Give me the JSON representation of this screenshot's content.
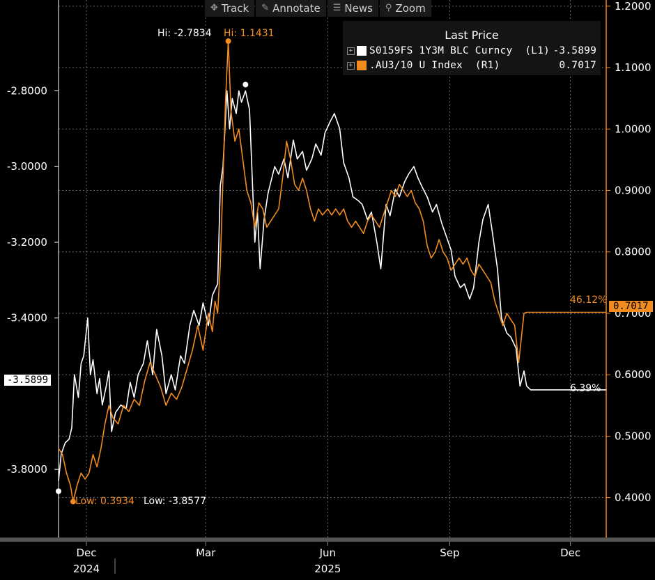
{
  "toolbar": {
    "items": [
      {
        "label": "Track",
        "icon": "crosshair-icon",
        "glyph": "✥"
      },
      {
        "label": "Annotate",
        "icon": "pencil-icon",
        "glyph": "✎"
      },
      {
        "label": "News",
        "icon": "news-icon",
        "glyph": "☰"
      },
      {
        "label": "Zoom",
        "icon": "zoom-icon",
        "glyph": "⚲"
      }
    ]
  },
  "legend": {
    "title": "Last Price",
    "rows": [
      {
        "name": "S0159FS 1Y3M BLC Curncy  (L1)",
        "value": "-3.5899",
        "color": "#ffffff"
      },
      {
        "name": ".AU3/10 U Index  (R1)",
        "value": "0.7017",
        "color": "#f28c1e"
      }
    ]
  },
  "annotations": {
    "hi_white": "Hi: -2.7834",
    "hi_orange": "Hi: 1.1431",
    "low_orange": "Low: 0.3934",
    "low_white": "Low: -3.8577",
    "pct_orange": "46.12%",
    "pct_white": "6.39%",
    "last_white_tag": "-3.5899",
    "last_orange_tag": "0.7017"
  },
  "chart_data": {
    "type": "line",
    "colors": {
      "white_series": "#ffffff",
      "orange_series": "#f28c1e",
      "right_axis": "#f28c1e",
      "left_axis": "#ffffff"
    },
    "left_axis": {
      "ylim": [
        -3.98,
        -2.56
      ],
      "ticks": [
        "-2.8000",
        "-3.0000",
        "-3.2000",
        "-3.4000",
        "-3.8000"
      ],
      "tick_values": [
        -2.8,
        -3.0,
        -3.2,
        -3.4,
        -3.8
      ]
    },
    "right_axis": {
      "ylim": [
        0.335,
        1.21
      ],
      "ticks": [
        "1.2000",
        "1.1000",
        "1.0000",
        "0.9000",
        "0.8000",
        "0.7000",
        "0.6000",
        "0.5000",
        "0.4000"
      ],
      "tick_values": [
        1.2,
        1.1,
        1.0,
        0.9,
        0.8,
        0.7,
        0.6,
        0.5,
        0.4
      ]
    },
    "x_axis": {
      "xlim": [
        "2024-11-10",
        "2025-12-28"
      ],
      "ticks": [
        {
          "label": "Dec",
          "date": "2024-12-01"
        },
        {
          "label": "Mar",
          "date": "2025-03-01"
        },
        {
          "label": "Jun",
          "date": "2025-06-01"
        },
        {
          "label": "Sep",
          "date": "2025-09-01"
        },
        {
          "label": "Dec",
          "date": "2025-12-01"
        }
      ],
      "years": [
        {
          "label": "2024",
          "date": "2024-12-01"
        },
        {
          "label": "2025",
          "date": "2025-06-01"
        }
      ]
    },
    "grid": true,
    "series": [
      {
        "name": "S0159FS 1Y3M BLC Curncy",
        "axis": "left",
        "color": "#ffffff",
        "points": [
          [
            "2024-11-10",
            -3.83
          ],
          [
            "2024-11-12",
            -3.76
          ],
          [
            "2024-11-15",
            -3.73
          ],
          [
            "2024-11-18",
            -3.72
          ],
          [
            "2024-11-20",
            -3.69
          ],
          [
            "2024-11-22",
            -3.55
          ],
          [
            "2024-11-25",
            -3.61
          ],
          [
            "2024-11-27",
            -3.52
          ],
          [
            "2024-11-29",
            -3.5
          ],
          [
            "2024-12-02",
            -3.4
          ],
          [
            "2024-12-04",
            -3.55
          ],
          [
            "2024-12-06",
            -3.51
          ],
          [
            "2024-12-09",
            -3.6
          ],
          [
            "2024-12-11",
            -3.56
          ],
          [
            "2024-12-13",
            -3.63
          ],
          [
            "2024-12-16",
            -3.58
          ],
          [
            "2024-12-18",
            -3.54
          ],
          [
            "2024-12-20",
            -3.7
          ],
          [
            "2024-12-23",
            -3.65
          ],
          [
            "2024-12-27",
            -3.63
          ],
          [
            "2024-12-31",
            -3.64
          ],
          [
            "2025-01-03",
            -3.57
          ],
          [
            "2025-01-06",
            -3.61
          ],
          [
            "2025-01-09",
            -3.55
          ],
          [
            "2025-01-13",
            -3.52
          ],
          [
            "2025-01-16",
            -3.46
          ],
          [
            "2025-01-20",
            -3.55
          ],
          [
            "2025-01-23",
            -3.43
          ],
          [
            "2025-01-27",
            -3.5
          ],
          [
            "2025-01-30",
            -3.6
          ],
          [
            "2025-02-03",
            -3.55
          ],
          [
            "2025-02-06",
            -3.59
          ],
          [
            "2025-02-10",
            -3.5
          ],
          [
            "2025-02-13",
            -3.52
          ],
          [
            "2025-02-17",
            -3.42
          ],
          [
            "2025-02-20",
            -3.38
          ],
          [
            "2025-02-24",
            -3.42
          ],
          [
            "2025-02-27",
            -3.36
          ],
          [
            "2025-03-03",
            -3.42
          ],
          [
            "2025-03-06",
            -3.34
          ],
          [
            "2025-03-10",
            -3.31
          ],
          [
            "2025-03-12",
            -3.05
          ],
          [
            "2025-03-14",
            -3.0
          ],
          [
            "2025-03-17",
            -2.8
          ],
          [
            "2025-03-19",
            -2.9
          ],
          [
            "2025-03-21",
            -2.82
          ],
          [
            "2025-03-24",
            -2.86
          ],
          [
            "2025-03-26",
            -2.8
          ],
          [
            "2025-03-28",
            -2.83
          ],
          [
            "2025-03-31",
            -2.8
          ],
          [
            "2025-04-03",
            -2.85
          ],
          [
            "2025-04-07",
            -3.2
          ],
          [
            "2025-04-09",
            -3.12
          ],
          [
            "2025-04-11",
            -3.27
          ],
          [
            "2025-04-14",
            -3.14
          ],
          [
            "2025-04-17",
            -3.07
          ],
          [
            "2025-04-22",
            -3.0
          ],
          [
            "2025-04-25",
            -3.02
          ],
          [
            "2025-04-29",
            -2.98
          ],
          [
            "2025-05-02",
            -3.03
          ],
          [
            "2025-05-06",
            -2.93
          ],
          [
            "2025-05-09",
            -2.98
          ],
          [
            "2025-05-13",
            -2.96
          ],
          [
            "2025-05-16",
            -3.01
          ],
          [
            "2025-05-20",
            -2.98
          ],
          [
            "2025-05-23",
            -2.94
          ],
          [
            "2025-05-27",
            -2.97
          ],
          [
            "2025-05-30",
            -2.91
          ],
          [
            "2025-06-03",
            -2.88
          ],
          [
            "2025-06-06",
            -2.86
          ],
          [
            "2025-06-10",
            -2.9
          ],
          [
            "2025-06-13",
            -2.99
          ],
          [
            "2025-06-17",
            -3.03
          ],
          [
            "2025-06-20",
            -3.08
          ],
          [
            "2025-06-24",
            -3.09
          ],
          [
            "2025-06-27",
            -3.1
          ],
          [
            "2025-07-01",
            -3.14
          ],
          [
            "2025-07-04",
            -3.12
          ],
          [
            "2025-07-08",
            -3.2
          ],
          [
            "2025-07-11",
            -3.27
          ],
          [
            "2025-07-15",
            -3.1
          ],
          [
            "2025-07-18",
            -3.13
          ],
          [
            "2025-07-22",
            -3.06
          ],
          [
            "2025-07-25",
            -3.08
          ],
          [
            "2025-07-29",
            -3.04
          ],
          [
            "2025-08-01",
            -3.02
          ],
          [
            "2025-08-05",
            -3.0
          ],
          [
            "2025-08-08",
            -3.03
          ],
          [
            "2025-08-12",
            -3.06
          ],
          [
            "2025-08-15",
            -3.08
          ],
          [
            "2025-08-19",
            -3.12
          ],
          [
            "2025-08-22",
            -3.1
          ],
          [
            "2025-08-26",
            -3.15
          ],
          [
            "2025-08-29",
            -3.18
          ],
          [
            "2025-09-02",
            -3.22
          ],
          [
            "2025-09-05",
            -3.29
          ],
          [
            "2025-09-09",
            -3.32
          ],
          [
            "2025-09-12",
            -3.31
          ],
          [
            "2025-09-16",
            -3.35
          ],
          [
            "2025-09-19",
            -3.32
          ],
          [
            "2025-09-23",
            -3.2
          ],
          [
            "2025-09-26",
            -3.14
          ],
          [
            "2025-09-30",
            -3.1
          ],
          [
            "2025-10-03",
            -3.17
          ],
          [
            "2025-10-07",
            -3.27
          ],
          [
            "2025-10-10",
            -3.4
          ],
          [
            "2025-10-14",
            -3.44
          ],
          [
            "2025-10-17",
            -3.45
          ],
          [
            "2025-10-21",
            -3.48
          ],
          [
            "2025-10-24",
            -3.58
          ],
          [
            "2025-10-27",
            -3.54
          ],
          [
            "2025-10-29",
            -3.58
          ],
          [
            "2025-11-01",
            -3.5899
          ],
          [
            "2025-12-28",
            -3.5899
          ]
        ]
      },
      {
        "name": ".AU3/10 U Index",
        "axis": "right",
        "color": "#f28c1e",
        "points": [
          [
            "2024-11-10",
            0.48
          ],
          [
            "2024-11-13",
            0.47
          ],
          [
            "2024-11-16",
            0.44
          ],
          [
            "2024-11-19",
            0.42
          ],
          [
            "2024-11-21",
            0.3934
          ],
          [
            "2024-11-24",
            0.42
          ],
          [
            "2024-11-27",
            0.44
          ],
          [
            "2024-11-30",
            0.43
          ],
          [
            "2024-12-03",
            0.44
          ],
          [
            "2024-12-06",
            0.47
          ],
          [
            "2024-12-09",
            0.45
          ],
          [
            "2024-12-12",
            0.48
          ],
          [
            "2024-12-15",
            0.52
          ],
          [
            "2024-12-18",
            0.55
          ],
          [
            "2024-12-21",
            0.53
          ],
          [
            "2024-12-25",
            0.52
          ],
          [
            "2024-12-29",
            0.55
          ],
          [
            "2025-01-02",
            0.54
          ],
          [
            "2025-01-06",
            0.56
          ],
          [
            "2025-01-10",
            0.55
          ],
          [
            "2025-01-14",
            0.59
          ],
          [
            "2025-01-18",
            0.62
          ],
          [
            "2025-01-22",
            0.6
          ],
          [
            "2025-01-26",
            0.58
          ],
          [
            "2025-01-30",
            0.55
          ],
          [
            "2025-02-03",
            0.57
          ],
          [
            "2025-02-07",
            0.56
          ],
          [
            "2025-02-11",
            0.58
          ],
          [
            "2025-02-15",
            0.61
          ],
          [
            "2025-02-19",
            0.64
          ],
          [
            "2025-02-23",
            0.68
          ],
          [
            "2025-02-27",
            0.64
          ],
          [
            "2025-03-03",
            0.7
          ],
          [
            "2025-03-06",
            0.67
          ],
          [
            "2025-03-08",
            0.72
          ],
          [
            "2025-03-10",
            0.7
          ],
          [
            "2025-03-12",
            0.78
          ],
          [
            "2025-03-14",
            0.92
          ],
          [
            "2025-03-16",
            1.05
          ],
          [
            "2025-03-18",
            1.1431
          ],
          [
            "2025-03-20",
            1.03
          ],
          [
            "2025-03-23",
            0.98
          ],
          [
            "2025-03-26",
            1.0
          ],
          [
            "2025-03-29",
            0.95
          ],
          [
            "2025-04-01",
            0.9
          ],
          [
            "2025-04-04",
            0.88
          ],
          [
            "2025-04-07",
            0.84
          ],
          [
            "2025-04-10",
            0.88
          ],
          [
            "2025-04-13",
            0.87
          ],
          [
            "2025-04-16",
            0.84
          ],
          [
            "2025-04-19",
            0.85
          ],
          [
            "2025-04-22",
            0.86
          ],
          [
            "2025-04-25",
            0.87
          ],
          [
            "2025-04-28",
            0.92
          ],
          [
            "2025-05-01",
            0.98
          ],
          [
            "2025-05-04",
            0.95
          ],
          [
            "2025-05-07",
            0.91
          ],
          [
            "2025-05-10",
            0.9
          ],
          [
            "2025-05-13",
            0.92
          ],
          [
            "2025-05-16",
            0.9
          ],
          [
            "2025-05-19",
            0.87
          ],
          [
            "2025-05-22",
            0.85
          ],
          [
            "2025-05-25",
            0.87
          ],
          [
            "2025-05-28",
            0.86
          ],
          [
            "2025-06-01",
            0.87
          ],
          [
            "2025-06-04",
            0.86
          ],
          [
            "2025-06-07",
            0.87
          ],
          [
            "2025-06-10",
            0.86
          ],
          [
            "2025-06-13",
            0.87
          ],
          [
            "2025-06-16",
            0.85
          ],
          [
            "2025-06-19",
            0.84
          ],
          [
            "2025-06-22",
            0.85
          ],
          [
            "2025-06-25",
            0.84
          ],
          [
            "2025-06-28",
            0.83
          ],
          [
            "2025-07-01",
            0.85
          ],
          [
            "2025-07-04",
            0.86
          ],
          [
            "2025-07-07",
            0.85
          ],
          [
            "2025-07-10",
            0.84
          ],
          [
            "2025-07-13",
            0.86
          ],
          [
            "2025-07-16",
            0.88
          ],
          [
            "2025-07-19",
            0.9
          ],
          [
            "2025-07-22",
            0.89
          ],
          [
            "2025-07-25",
            0.91
          ],
          [
            "2025-07-28",
            0.9
          ],
          [
            "2025-07-31",
            0.89
          ],
          [
            "2025-08-03",
            0.9
          ],
          [
            "2025-08-06",
            0.88
          ],
          [
            "2025-08-09",
            0.87
          ],
          [
            "2025-08-12",
            0.85
          ],
          [
            "2025-08-15",
            0.81
          ],
          [
            "2025-08-18",
            0.79
          ],
          [
            "2025-08-21",
            0.8
          ],
          [
            "2025-08-24",
            0.82
          ],
          [
            "2025-08-27",
            0.8
          ],
          [
            "2025-08-30",
            0.79
          ],
          [
            "2025-09-02",
            0.77
          ],
          [
            "2025-09-05",
            0.78
          ],
          [
            "2025-09-08",
            0.79
          ],
          [
            "2025-09-11",
            0.78
          ],
          [
            "2025-09-14",
            0.79
          ],
          [
            "2025-09-17",
            0.77
          ],
          [
            "2025-09-20",
            0.76
          ],
          [
            "2025-09-23",
            0.78
          ],
          [
            "2025-09-26",
            0.77
          ],
          [
            "2025-09-29",
            0.76
          ],
          [
            "2025-10-02",
            0.75
          ],
          [
            "2025-10-05",
            0.72
          ],
          [
            "2025-10-08",
            0.7
          ],
          [
            "2025-10-11",
            0.68
          ],
          [
            "2025-10-14",
            0.7
          ],
          [
            "2025-10-17",
            0.69
          ],
          [
            "2025-10-20",
            0.68
          ],
          [
            "2025-10-23",
            0.62
          ],
          [
            "2025-10-25",
            0.66
          ],
          [
            "2025-10-27",
            0.7
          ],
          [
            "2025-10-29",
            0.7017
          ],
          [
            "2025-12-28",
            0.7017
          ]
        ]
      }
    ],
    "hi_marks": [
      {
        "series": "white",
        "date": "2025-03-31",
        "value": -2.7834,
        "label": "Hi: -2.7834"
      },
      {
        "series": "orange",
        "date": "2025-03-18",
        "value": 1.1431,
        "label": "Hi: 1.1431"
      }
    ],
    "low_marks": [
      {
        "series": "white",
        "date": "2024-11-10",
        "value": -3.8577,
        "label": "Low: -3.8577"
      },
      {
        "series": "orange",
        "date": "2024-11-21",
        "value": 0.3934,
        "label": "Low: 0.3934"
      }
    ]
  }
}
